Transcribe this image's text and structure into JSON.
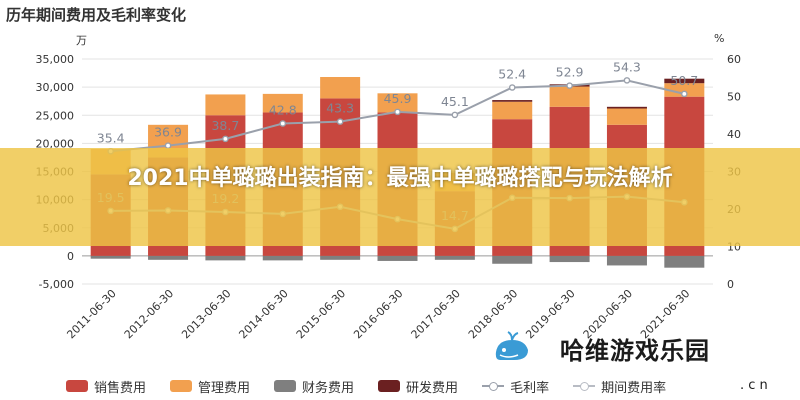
{
  "title": "历年期间费用及毛利率变化",
  "left_unit": "万",
  "right_unit": "%",
  "banner_text": "2021中单璐璐出装指南：最强中单璐璐搭配与玩法解析",
  "watermark": "哈维游戏乐园",
  "watermark_sub": ". c n",
  "colors": {
    "sales": "#c8473f",
    "management": "#f2a04f",
    "finance": "#7f7f7f",
    "rnd": "#6b2021",
    "gross_margin": "#9aa0ab",
    "expense_rate": "#b8bcc4",
    "banner": "#eec446"
  },
  "legend": [
    {
      "label": "销售费用",
      "color": "#c8473f",
      "kind": "box"
    },
    {
      "label": "管理费用",
      "color": "#f2a04f",
      "kind": "box"
    },
    {
      "label": "财务费用",
      "color": "#7f7f7f",
      "kind": "box"
    },
    {
      "label": "研发费用",
      "color": "#6b2021",
      "kind": "box"
    },
    {
      "label": "毛利率",
      "color": "#9aa0ab",
      "kind": "line"
    },
    {
      "label": "期间费用率",
      "color": "#b8bcc4",
      "kind": "line"
    }
  ],
  "chart_data": {
    "type": "bar",
    "stacked": true,
    "categories": [
      "2011-06-30",
      "2012-06-30",
      "2013-06-30",
      "2014-06-30",
      "2015-06-30",
      "2016-06-30",
      "2017-06-30",
      "2018-06-30",
      "2019-06-30",
      "2020-06-30",
      "2021-06-30"
    ],
    "y_left": {
      "min": -5000,
      "max": 35000,
      "ticks": [
        -5000,
        0,
        5000,
        10000,
        15000,
        20000,
        25000,
        30000,
        35000
      ],
      "tick_labels": [
        "-5,000",
        "0",
        "5,000",
        "10,000",
        "15,000",
        "20,000",
        "25,000",
        "30,000",
        "35,000"
      ],
      "unit": "万"
    },
    "y_right": {
      "min": 0,
      "max": 60,
      "ticks": [
        0,
        10,
        20,
        30,
        40,
        50,
        60
      ],
      "unit": "%"
    },
    "series": [
      {
        "name": "销售费用",
        "values": [
          14500,
          17500,
          25000,
          25500,
          28000,
          25500,
          11500,
          24300,
          26500,
          23300,
          28300
        ]
      },
      {
        "name": "管理费用",
        "values": [
          4500,
          5800,
          3700,
          3300,
          3800,
          3400,
          3300,
          3100,
          3600,
          2900,
          2400
        ]
      },
      {
        "name": "财务费用",
        "values": [
          -500,
          -700,
          -800,
          -800,
          -700,
          -900,
          -700,
          -1400,
          -1100,
          -1700,
          -2100
        ]
      },
      {
        "name": "研发费用",
        "values": [
          0,
          0,
          0,
          0,
          0,
          0,
          0,
          300,
          400,
          300,
          800
        ]
      }
    ],
    "lines": [
      {
        "name": "毛利率",
        "axis": "right",
        "values": [
          35.4,
          36.9,
          38.7,
          42.8,
          43.3,
          45.9,
          45.1,
          52.4,
          52.9,
          54.3,
          50.7
        ]
      },
      {
        "name": "期间费用率",
        "axis": "right",
        "values": [
          19.5,
          19.6,
          19.2,
          18.7,
          20.6,
          17.3,
          14.7,
          23.0,
          22.9,
          23.3,
          21.8
        ]
      }
    ],
    "point_labels": [
      "35.4",
      "36.9",
      "38.7",
      "42.8",
      "43.3",
      "45.9",
      "45.1",
      "52.4",
      "52.9",
      "54.3",
      "50.7"
    ],
    "expense_rate_labels": [
      "19.5",
      "",
      "19.2",
      "",
      "",
      "",
      "14.7",
      "",
      "",
      "",
      ""
    ],
    "grid": true,
    "legend_position": "bottom"
  }
}
